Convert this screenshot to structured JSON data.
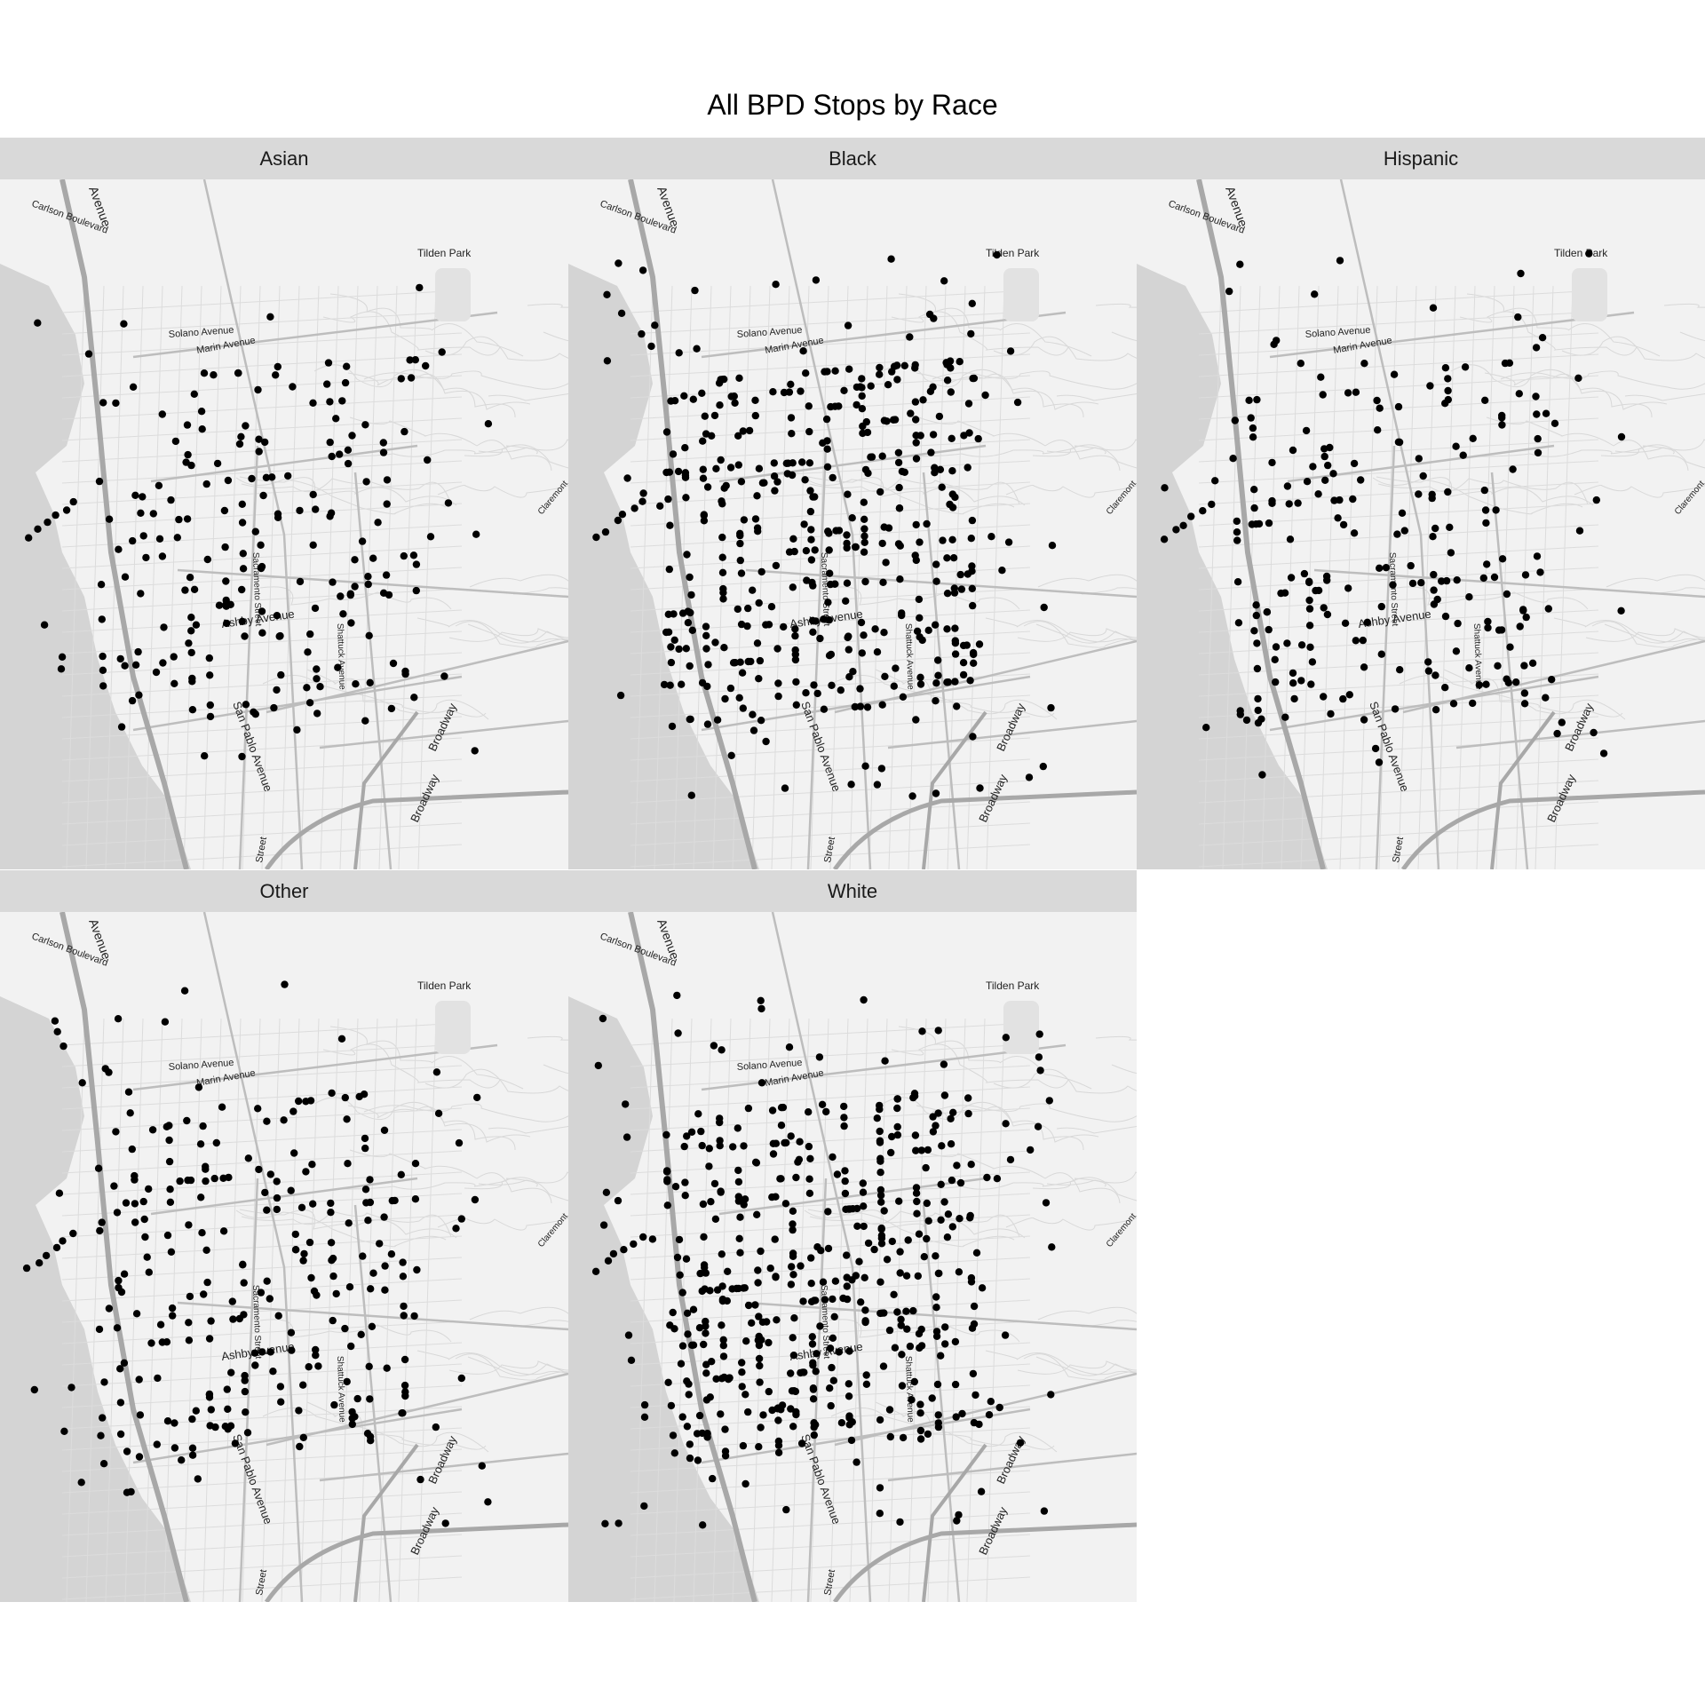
{
  "title": "All BPD Stops by Race",
  "map_labels": {
    "carlson": "Carlson Boulevard",
    "avenue_top": "Avenue",
    "solano": "Solano Avenue",
    "marin": "Marin Avenue",
    "tilden": "Tilden Park",
    "ashby": "Ashby Avenue",
    "san_pablo": "San Pablo Avenue",
    "shattuck": "Shattuck Avenue",
    "broadway1": "Broadway",
    "broadway2": "Broadway",
    "claremont": "Claremont",
    "street_bottom": "Street",
    "sacramento": "Sacramento Street"
  },
  "colors": {
    "water": "#d4d4d4",
    "land": "#f2f2f2",
    "road": "#cfcfcf",
    "highway": "#a8a8a8",
    "point": "#000000",
    "strip": "#d9d9d9"
  },
  "panels": [
    {
      "label": "Asian",
      "density": 0.75,
      "seed": 11
    },
    {
      "label": "Black",
      "density": 1.6,
      "seed": 23
    },
    {
      "label": "Hispanic",
      "density": 0.85,
      "seed": 37
    },
    {
      "label": "Other",
      "density": 0.95,
      "seed": 41
    },
    {
      "label": "White",
      "density": 1.75,
      "seed": 53
    }
  ]
}
